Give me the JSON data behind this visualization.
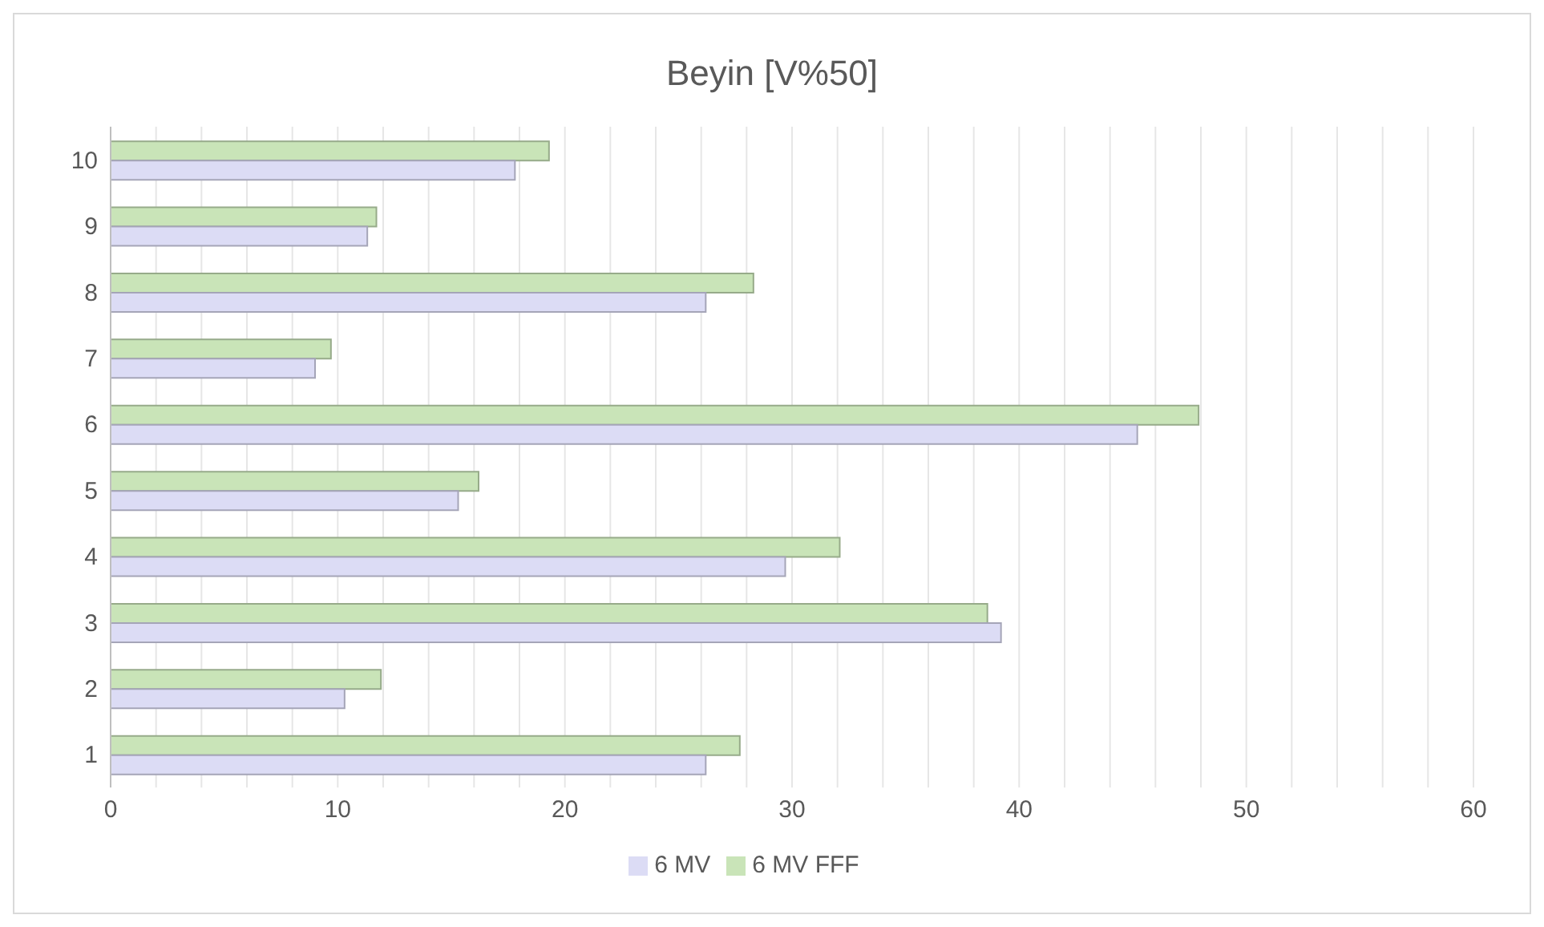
{
  "chart_data": {
    "type": "bar",
    "orientation": "horizontal",
    "title": "Beyin [V%50]",
    "categories": [
      "10",
      "9",
      "8",
      "7",
      "6",
      "5",
      "4",
      "3",
      "2",
      "1"
    ],
    "series": [
      {
        "name": "6 MV FFF",
        "color": "#c9e4b8",
        "values": [
          19.3,
          11.7,
          28.3,
          9.7,
          47.9,
          16.2,
          32.1,
          38.6,
          11.9,
          27.7
        ]
      },
      {
        "name": "6 MV",
        "color": "#dcdcf5",
        "values": [
          17.8,
          11.3,
          26.2,
          9.0,
          45.2,
          15.3,
          29.7,
          39.2,
          10.3,
          26.2
        ]
      }
    ],
    "xlim": [
      0,
      60
    ],
    "xticks": [
      0,
      {
        "value": 2,
        "label": null
      },
      {
        "value": 4,
        "label": null
      },
      {
        "value": 6,
        "label": null
      },
      {
        "value": 8,
        "label": null
      },
      10,
      {
        "value": 12,
        "label": null
      },
      {
        "value": 14,
        "label": null
      },
      {
        "value": 16,
        "label": null
      },
      {
        "value": 18,
        "label": null
      },
      20,
      {
        "value": 22,
        "label": null
      },
      {
        "value": 24,
        "label": null
      },
      {
        "value": 26,
        "label": null
      },
      {
        "value": 28,
        "label": null
      },
      30,
      {
        "value": 32,
        "label": null
      },
      {
        "value": 34,
        "label": null
      },
      {
        "value": 36,
        "label": null
      },
      {
        "value": 38,
        "label": null
      },
      40,
      {
        "value": 42,
        "label": null
      },
      {
        "value": 44,
        "label": null
      },
      {
        "value": 46,
        "label": null
      },
      {
        "value": 48,
        "label": null
      },
      50,
      {
        "value": 52,
        "label": null
      },
      {
        "value": 54,
        "label": null
      },
      {
        "value": 56,
        "label": null
      },
      {
        "value": 58,
        "label": null
      },
      60
    ],
    "grid": "x",
    "legend": "bottom"
  }
}
